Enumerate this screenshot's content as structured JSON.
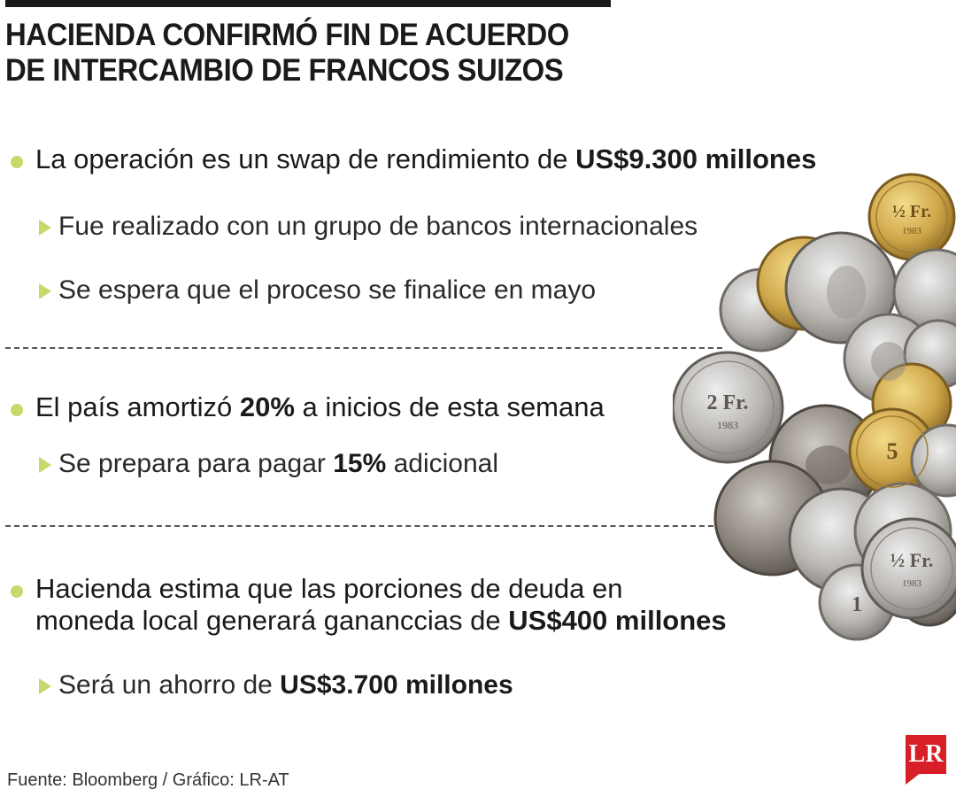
{
  "title": {
    "line1": "HACIENDA CONFIRMÓ FIN DE ACUERDO",
    "line2": "DE INTERCAMBIO DE FRANCOS SUIZOS"
  },
  "colors": {
    "accent": "#c9d86a",
    "logo": "#d81e27",
    "text": "#1a1a1a"
  },
  "sections": [
    {
      "bullet_pre": "La operación es un swap de rendimiento de ",
      "bullet_bold": "US$9.300 millones",
      "subs": [
        {
          "pre": "Fue realizado con un grupo de bancos internacionales"
        },
        {
          "pre": "Se espera que el proceso se finalice en mayo"
        }
      ]
    },
    {
      "bullet_pre": "El país amortizó ",
      "bullet_bold": "20%",
      "bullet_post": " a inicios de esta semana",
      "subs": [
        {
          "pre": "Se prepara para pagar ",
          "bold": "15%",
          "post": " adicional"
        }
      ]
    },
    {
      "bullet_line1": "Hacienda estima que las porciones de deuda en",
      "bullet_line2_pre": "moneda local generará gananccias de ",
      "bullet_line2_bold": "US$400 millones",
      "subs": [
        {
          "pre": "Será un ahorro de ",
          "bold": "US$3.700 millones"
        }
      ]
    }
  ],
  "coins": [
    {
      "label": "½ Fr.",
      "year": "1983"
    },
    {
      "label": "2 Fr.",
      "year": "1983"
    },
    {
      "label": "5"
    },
    {
      "label": "½ Fr.",
      "year": "1983"
    },
    {
      "label": "1"
    }
  ],
  "source": "Fuente: Bloomberg  / Gráfico: LR-AT",
  "logo": "LR"
}
